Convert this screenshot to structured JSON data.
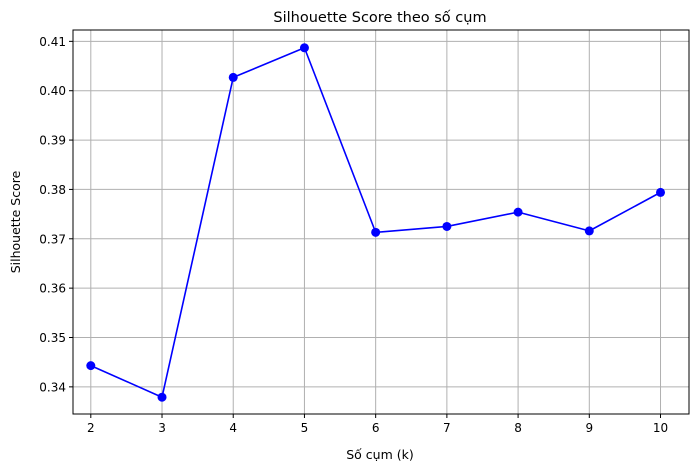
{
  "chart_data": {
    "type": "line",
    "title": "Silhouette Score theo số cụm",
    "xlabel": "Số cụm (k)",
    "ylabel": "Silhouette Score",
    "x": [
      2,
      3,
      4,
      5,
      6,
      7,
      8,
      9,
      10
    ],
    "series": [
      {
        "values": [
          0.3443,
          0.3379,
          0.4027,
          0.4087,
          0.3713,
          0.3725,
          0.3754,
          0.3716,
          0.3794
        ],
        "color": "#0000ff",
        "marker": "circle"
      }
    ],
    "xlim": [
      1.75,
      10.4
    ],
    "ylim": [
      0.3345,
      0.4123
    ],
    "xticks": [
      2,
      3,
      4,
      5,
      6,
      7,
      8,
      9,
      10
    ],
    "xtick_labels": [
      "2",
      "3",
      "4",
      "5",
      "6",
      "7",
      "8",
      "9",
      "10"
    ],
    "yticks": [
      0.34,
      0.35,
      0.36,
      0.37,
      0.38,
      0.39,
      0.4,
      0.41
    ],
    "ytick_labels": [
      "0.34",
      "0.35",
      "0.36",
      "0.37",
      "0.38",
      "0.39",
      "0.40",
      "0.41"
    ],
    "grid": true,
    "grid_color": "#b0b0b0",
    "legend": false
  }
}
